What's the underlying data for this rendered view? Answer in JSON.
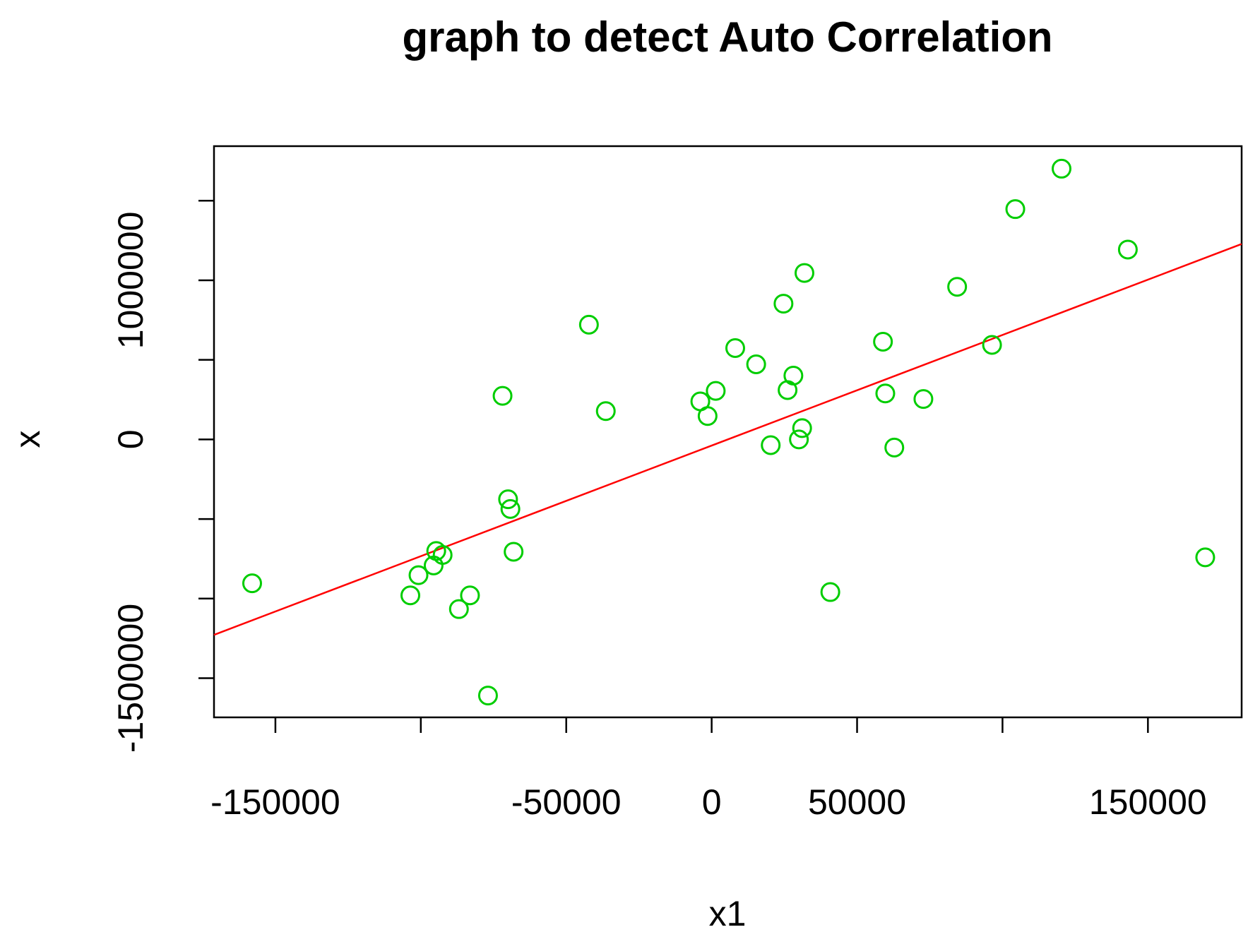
{
  "chart_data": {
    "type": "scatter",
    "title": "graph to detect Auto Correlation",
    "x_label": "x1",
    "y_label": "x",
    "xlim": [
      -171111,
      182222
    ],
    "ylim": [
      -1746193,
      1842640
    ],
    "xticks": [
      -150000,
      {
        "value": -100000,
        "label": null
      },
      -50000,
      0,
      50000,
      {
        "value": 100000,
        "label": null
      },
      150000
    ],
    "yticks": [
      {
        "value": -1500000,
        "label": "-1500000"
      },
      {
        "value": -1000000,
        "label": null
      },
      {
        "value": -500000,
        "label": null
      },
      0,
      {
        "value": 500000,
        "label": null
      },
      1000000,
      {
        "value": 1500000,
        "label": null
      }
    ],
    "color": "#00cd00",
    "x": [
      -158000,
      -103600,
      -100800,
      -95600,
      -94700,
      -92500,
      -86900,
      -83100,
      -76900,
      -71900,
      -70000,
      -69200,
      -68100,
      -42200,
      -36400,
      -3900,
      -1400,
      1400,
      8100,
      15300,
      20300,
      24700,
      26100,
      28100,
      30000,
      31100,
      31900,
      40800,
      58900,
      59700,
      62800,
      72800,
      84400,
      96400,
      104400,
      120300,
      143100,
      169700
    ],
    "values": [
      -904000,
      -980000,
      -853000,
      -792000,
      -701000,
      -726000,
      -1066000,
      -980000,
      -1609000,
      274000,
      -376000,
      -437000,
      -706000,
      721000,
      178000,
      239000,
      147000,
      305000,
      574000,
      472000,
      -36000,
      853000,
      310000,
      401000,
      0,
      71000,
      1046000,
      -959000,
      614000,
      289000,
      -51000,
      254000,
      959000,
      594000,
      1447000,
      1701000,
      1193000,
      -741000
    ],
    "fit_line": {
      "color": "#ff0000",
      "intercept": -38600,
      "slope": 6.95
    }
  }
}
